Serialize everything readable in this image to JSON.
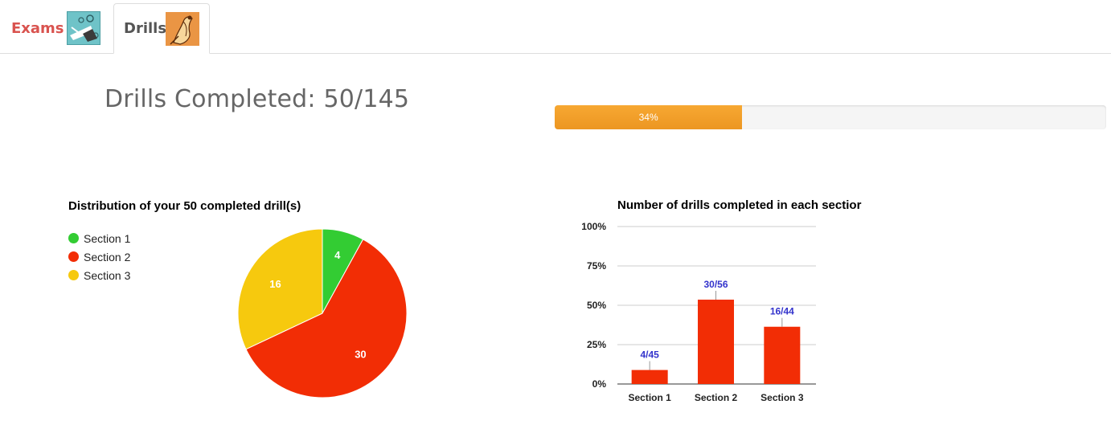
{
  "tabs": [
    {
      "label": "Exams",
      "active": false,
      "icon": "exam-illustration-icon"
    },
    {
      "label": "Drills",
      "active": true,
      "icon": "drills-illustration-icon"
    }
  ],
  "header": {
    "title": "Drills Completed: 50/145"
  },
  "progress": {
    "value_fraction": 0.34,
    "label": "34%",
    "color": "#f0a030"
  },
  "colors": {
    "section1": "#33cc33",
    "section2": "#f22d05",
    "section3": "#f6c90e",
    "bar": "#f22d05",
    "annotation": "#3333cc",
    "exams_tab_text": "#d9534f"
  },
  "chart_data": [
    {
      "type": "pie",
      "title": "Distribution of your 50 completed drill(s)",
      "legend_position": "left",
      "categories": [
        "Section 1",
        "Section 2",
        "Section 3"
      ],
      "values": [
        4,
        30,
        16
      ],
      "data_labels": [
        "4",
        "30",
        "16"
      ]
    },
    {
      "type": "bar",
      "title": "Number of drills completed in each sectior",
      "categories": [
        "Section 1",
        "Section 2",
        "Section 3"
      ],
      "values": [
        0.0889,
        0.5357,
        0.3636
      ],
      "annotations": [
        "4/45",
        "30/56",
        "16/44"
      ],
      "ylim": [
        0,
        1
      ],
      "yticks": [
        "0%",
        "25%",
        "50%",
        "75%",
        "100%"
      ],
      "grid": true,
      "legend": "none"
    }
  ]
}
